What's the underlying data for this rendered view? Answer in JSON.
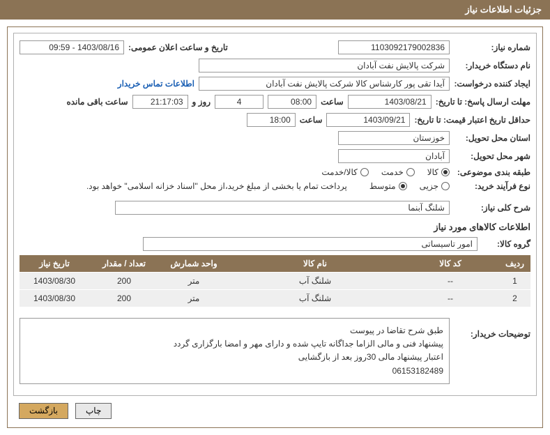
{
  "colors": {
    "header_bg": "#8b7355",
    "header_text": "#ffffff",
    "border": "#8b7355",
    "field_border": "#999999",
    "table_header_bg": "#8b7355",
    "table_row_bg": "#efefef",
    "link": "#1a5fb4",
    "btn_back_bg": "#d4a85f",
    "btn_print_bg": "#e8e8e8"
  },
  "header": {
    "title": "جزئیات اطلاعات نیاز"
  },
  "fields": {
    "need_number_label": "شماره نیاز:",
    "need_number": "1103092179002836",
    "announce_datetime_label": "تاریخ و ساعت اعلان عمومی:",
    "announce_datetime": "1403/08/16 - 09:59",
    "buyer_org_label": "نام دستگاه خریدار:",
    "buyer_org": "شرکت پالایش نفت آبادان",
    "requester_label": "ایجاد کننده درخواست:",
    "requester": "آیدا تقی پور کارشناس کالا شرکت پالایش نفت آبادان",
    "contact_link": "اطلاعات تماس خریدار",
    "deadline_reply_label": "مهلت ارسال پاسخ: تا تاریخ:",
    "deadline_date": "1403/08/21",
    "time_word": "ساعت",
    "deadline_time": "08:00",
    "days_remain": "4",
    "days_and_word": "روز و",
    "hours_remain": "21:17:03",
    "hours_remain_word": "ساعت باقی مانده",
    "min_validity_label": "حداقل تاریخ اعتبار قیمت: تا تاریخ:",
    "min_validity_date": "1403/09/21",
    "min_validity_time": "18:00",
    "delivery_province_label": "استان محل تحویل:",
    "delivery_province": "خوزستان",
    "delivery_city_label": "شهر محل تحویل:",
    "delivery_city": "آبادان",
    "category_label": "طبقه بندی موضوعی:",
    "category_options": {
      "goods": "کالا",
      "service": "خدمت",
      "goods_service": "کالا/خدمت"
    },
    "category_selected": "goods",
    "purchase_type_label": "نوع فرآیند خرید:",
    "purchase_options": {
      "minor": "جزیی",
      "medium": "متوسط"
    },
    "purchase_selected": "medium",
    "payment_note": "پرداخت تمام یا بخشی از مبلغ خرید،از محل \"اسناد خزانه اسلامی\" خواهد بود.",
    "need_desc_label": "شرح کلی نیاز:",
    "need_desc": "شلنگ آبنما"
  },
  "items_section": {
    "title": "اطلاعات کالاهای مورد نیاز",
    "group_label": "گروه کالا:",
    "group_value": "امور تاسیساتی",
    "columns": {
      "row": "ردیف",
      "code": "کد کالا",
      "name": "نام کالا",
      "unit": "واحد شمارش",
      "qty": "تعداد / مقدار",
      "need_date": "تاریخ نیاز"
    },
    "rows": [
      {
        "row": "1",
        "code": "--",
        "name": "شلنگ آب",
        "unit": "متر",
        "qty": "200",
        "need_date": "1403/08/30"
      },
      {
        "row": "2",
        "code": "--",
        "name": "شلنگ آب",
        "unit": "متر",
        "qty": "200",
        "need_date": "1403/08/30"
      }
    ]
  },
  "buyer_notes": {
    "label": "توضیحات خریدار:",
    "line1": "طبق شرح تقاضا در پیوست",
    "line2": "پیشنهاد فنی و مالی الزاما جداگانه تایپ شده و دارای مهر و امضا بارگزاری گردد",
    "line3": "اعتبار پیشنهاد مالی 30روز بعد از بازگشایی",
    "line4": "06153182489"
  },
  "buttons": {
    "print": "چاپ",
    "back": "بازگشت"
  },
  "watermark": "AriaTender.net"
}
